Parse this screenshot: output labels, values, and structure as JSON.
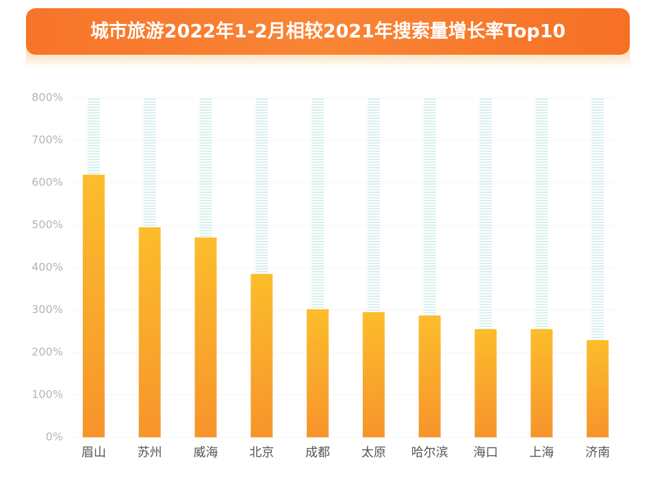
{
  "chart_data": {
    "type": "bar",
    "title": "城市旅游2022年1-2月相较2021年搜索量增长率Top10",
    "categories": [
      "眉山",
      "苏州",
      "威海",
      "北京",
      "成都",
      "太原",
      "哈尔滨",
      "海口",
      "上海",
      "济南"
    ],
    "values": [
      619,
      495,
      471,
      385,
      302,
      295,
      287,
      255,
      255,
      229
    ],
    "color": "#f9a52b",
    "ylim": [
      0,
      800
    ],
    "yticks": [
      {
        "value": 0,
        "label": "0%"
      },
      {
        "value": 100,
        "label": "100%"
      },
      {
        "value": 200,
        "label": "200%"
      },
      {
        "value": 300,
        "label": "300%"
      },
      {
        "value": 400,
        "label": "400%"
      },
      {
        "value": 500,
        "label": "500%"
      },
      {
        "value": 600,
        "label": "600%"
      },
      {
        "value": 700,
        "label": "700%"
      },
      {
        "value": 800,
        "label": "800%"
      }
    ],
    "grid": true
  }
}
